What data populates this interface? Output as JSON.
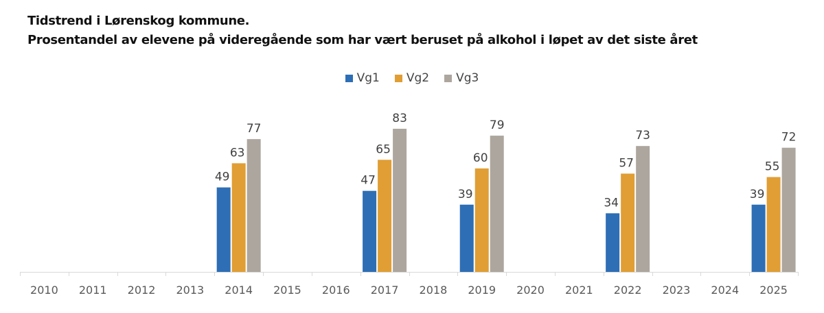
{
  "chart_data": {
    "type": "bar",
    "title": "Tidstrend i Lørenskog kommune.",
    "subtitle": "Prosentandel av elevene på videregående som har vært beruset på alkohol i løpet av det siste året",
    "xlabel": "",
    "ylabel": "",
    "ylim": [
      0,
      83
    ],
    "grid": false,
    "legend_position": "top-center",
    "categories": [
      "2010",
      "2011",
      "2012",
      "2013",
      "2014",
      "2015",
      "2016",
      "2017",
      "2018",
      "2019",
      "2020",
      "2021",
      "2022",
      "2023",
      "2024",
      "2025"
    ],
    "series": [
      {
        "name": "Vg1",
        "color": "#2E6EB5",
        "values": [
          null,
          null,
          null,
          null,
          49,
          null,
          null,
          47,
          null,
          39,
          null,
          null,
          34,
          null,
          null,
          39
        ]
      },
      {
        "name": "Vg2",
        "color": "#E09E34",
        "values": [
          null,
          null,
          null,
          null,
          63,
          null,
          null,
          65,
          null,
          60,
          null,
          null,
          57,
          null,
          null,
          55
        ]
      },
      {
        "name": "Vg3",
        "color": "#ADA69E",
        "values": [
          null,
          null,
          null,
          null,
          77,
          null,
          null,
          83,
          null,
          79,
          null,
          null,
          73,
          null,
          null,
          72
        ]
      }
    ]
  }
}
